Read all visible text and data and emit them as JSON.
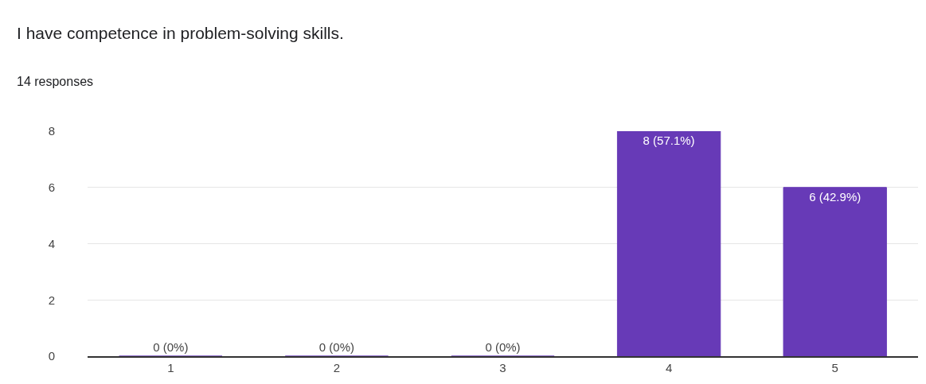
{
  "chart_data": {
    "type": "bar",
    "title": "I have competence in problem-solving skills.",
    "subtitle": "14 responses",
    "categories": [
      "1",
      "2",
      "3",
      "4",
      "5"
    ],
    "values": [
      0,
      0,
      0,
      8,
      6
    ],
    "value_labels": [
      "0 (0%)",
      "0 (0%)",
      "0 (0%)",
      "8 (57.1%)",
      "6 (42.9%)"
    ],
    "color": "#673ab7",
    "ylim": [
      0,
      8
    ],
    "yticks": [
      0,
      2,
      4,
      6,
      8
    ],
    "grid": "y",
    "legend": false
  }
}
